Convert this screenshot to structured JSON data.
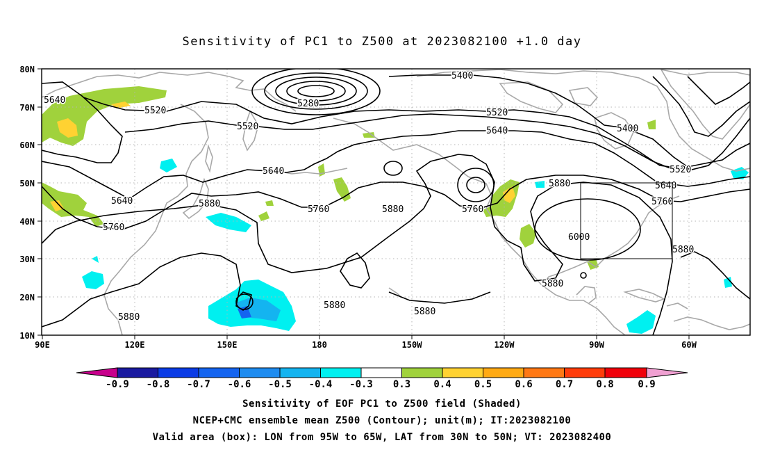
{
  "title": "Sensitivity of PC1 to Z500 at 2023082100 +1.0 day",
  "lat_labels": [
    "80N",
    "70N",
    "60N",
    "50N",
    "40N",
    "30N",
    "20N",
    "10N"
  ],
  "lon_labels": [
    "90E",
    "120E",
    "150E",
    "180",
    "150W",
    "120W",
    "90W",
    "60W"
  ],
  "contour_labels": [
    "5640",
    "5520",
    "5520",
    "5280",
    "5400",
    "5520",
    "5640",
    "5400",
    "5520",
    "5640",
    "5640",
    "5760",
    "5640",
    "5760",
    "5880",
    "5760",
    "5880",
    "5760",
    "5880",
    "6000",
    "5880",
    "5880",
    "5880",
    "5880",
    "5880"
  ],
  "colorbar": {
    "levels": [
      "-0.9",
      "-0.8",
      "-0.7",
      "-0.6",
      "-0.5",
      "-0.4",
      "-0.3",
      "0.3",
      "0.4",
      "0.5",
      "0.6",
      "0.7",
      "0.8",
      "0.9"
    ],
    "colors": [
      "#c8008c",
      "#1a1aa0",
      "#0a3be6",
      "#1464f0",
      "#1e8cf0",
      "#14b4f0",
      "#00f0f0",
      "#ffffff",
      "#a0d23c",
      "#ffd232",
      "#ffaa14",
      "#ff7814",
      "#ff3c0a",
      "#f0000a",
      "#f0a0d2"
    ]
  },
  "captions": [
    "Sensitivity of EOF PC1 to Z500 field (Shaded)",
    "NCEP+CMC ensemble mean Z500 (Contour); unit(m); IT:2023082100",
    "Valid area (box): LON from 95W to 65W, LAT from 30N to 50N; VT: 2023082400"
  ]
}
